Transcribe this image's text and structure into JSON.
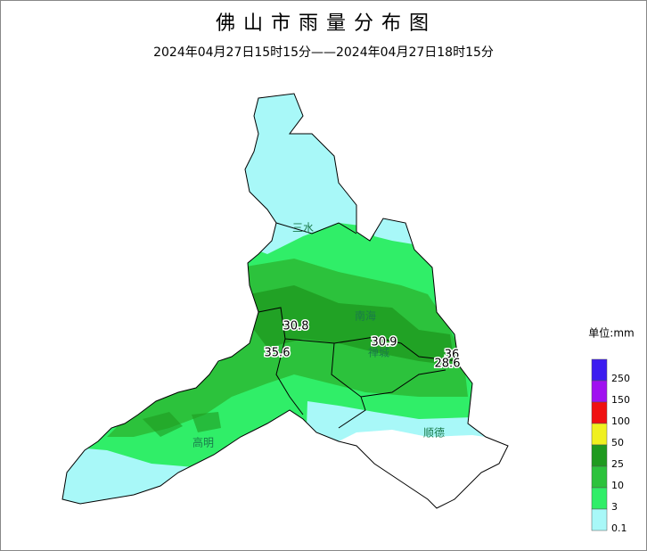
{
  "header": {
    "title": "佛山市雨量分布图",
    "subtitle": "2024年04月27日15时15分——2024年04月27日18时15分"
  },
  "districts": [
    {
      "name": "三水"
    },
    {
      "name": "南海"
    },
    {
      "name": "禅城"
    },
    {
      "name": "高明"
    },
    {
      "name": "顺德"
    }
  ],
  "stations": [
    {
      "label": "30.8"
    },
    {
      "label": "35.6"
    },
    {
      "label": "30.9"
    },
    {
      "label": "36"
    },
    {
      "label": "28.6"
    }
  ],
  "legend": {
    "unit": "单位:mm",
    "items": [
      {
        "label": "250",
        "color": "#3c1cf0"
      },
      {
        "label": "150",
        "color": "#a010f0"
      },
      {
        "label": "100",
        "color": "#f01010"
      },
      {
        "label": "50",
        "color": "#f0f020"
      },
      {
        "label": "25",
        "color": "#1f9a1f"
      },
      {
        "label": "10",
        "color": "#2cc23c"
      },
      {
        "label": "3",
        "color": "#30ee68"
      },
      {
        "label": "0.1",
        "color": "#a8f8f8"
      }
    ]
  }
}
